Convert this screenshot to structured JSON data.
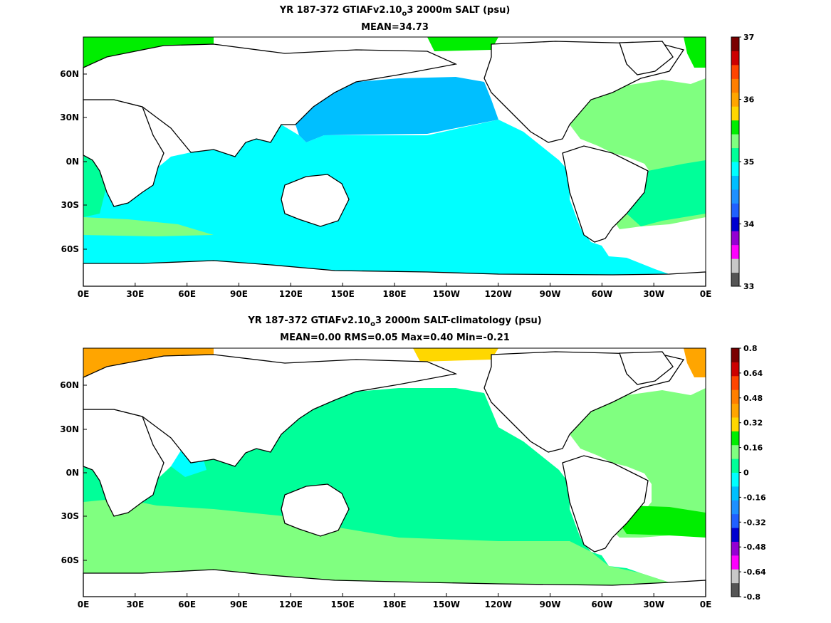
{
  "panels": [
    {
      "title_a": "YR 187-372 GTIAFv2.10",
      "title_sub": "o",
      "title_b": "3 2000m SALT (psu)",
      "subtitle": "MEAN=34.73",
      "lon_ticks": [
        "0E",
        "30E",
        "60E",
        "90E",
        "120E",
        "150E",
        "180E",
        "150W",
        "120W",
        "90W",
        "60W",
        "30W",
        "0E"
      ],
      "lat_ticks": [
        "60N",
        "30N",
        "0N",
        "30S",
        "60S"
      ],
      "colorbar": {
        "labels": [
          "37",
          "36",
          "35",
          "34",
          "33"
        ],
        "colors": [
          "#555555",
          "#c8c8c8",
          "#ff00ff",
          "#9400d3",
          "#0000d0",
          "#2060ff",
          "#1e90ff",
          "#00bfff",
          "#00ffff",
          "#00ff99",
          "#80ff80",
          "#00ee00",
          "#ffd700",
          "#ffa500",
          "#ff7f00",
          "#ff4500",
          "#cc0000",
          "#7a0000"
        ]
      },
      "legend_colors": {
        "ocean_main": "#00ffff",
        "ocean_north_pacific": "#00bfff",
        "atlantic": "#80ff80",
        "arctic": "#00ee00",
        "land": "#ffffff",
        "coast": "#000000"
      }
    },
    {
      "title_a": "YR 187-372 GTIAFv2.10",
      "title_sub": "o",
      "title_b": "3 2000m SALT-climatology (psu)",
      "subtitle": "MEAN=0.00   RMS=0.05   Max=0.40   Min=-0.21",
      "lon_ticks": [
        "0E",
        "30E",
        "60E",
        "90E",
        "120E",
        "150E",
        "180E",
        "150W",
        "120W",
        "90W",
        "60W",
        "30W",
        "0E"
      ],
      "lat_ticks": [
        "60N",
        "30N",
        "0N",
        "30S",
        "60S"
      ],
      "colorbar": {
        "labels": [
          "0.8",
          "0.64",
          "0.48",
          "0.32",
          "0.16",
          "0",
          "-0.16",
          "-0.32",
          "-0.48",
          "-0.64",
          "-0.8"
        ],
        "colors": [
          "#555555",
          "#c8c8c8",
          "#ff00ff",
          "#9400d3",
          "#0000d0",
          "#2060ff",
          "#1e90ff",
          "#00bfff",
          "#00ffff",
          "#00ff99",
          "#80ff80",
          "#00ee00",
          "#ffd700",
          "#ffa500",
          "#ff7f00",
          "#ff4500",
          "#cc0000",
          "#7a0000"
        ]
      },
      "legend_colors": {
        "ocean_main": "#00ff99",
        "southern": "#80ff80",
        "atlantic_band": "#00ee00",
        "arctic": "#ffa500",
        "land": "#ffffff",
        "coast": "#000000"
      }
    }
  ]
}
